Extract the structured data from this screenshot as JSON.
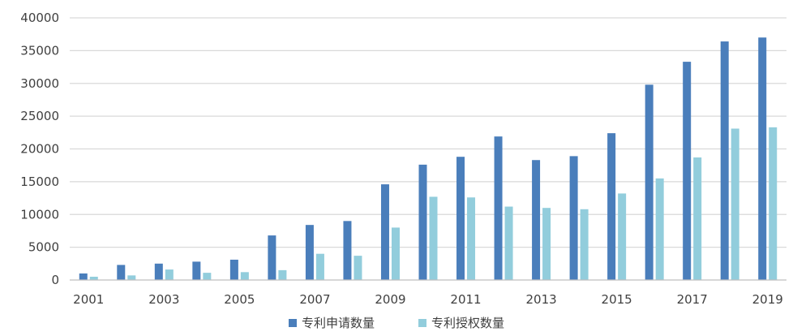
{
  "chart_data": {
    "type": "bar",
    "categories": [
      "2001",
      "2002",
      "2003",
      "2004",
      "2005",
      "2006",
      "2007",
      "2008",
      "2009",
      "2010",
      "2011",
      "2012",
      "2013",
      "2014",
      "2015",
      "2016",
      "2017",
      "2018",
      "2019"
    ],
    "x_tick_labels": [
      "2001",
      "2003",
      "2005",
      "2007",
      "2009",
      "2011",
      "2013",
      "2015",
      "2017",
      "2019"
    ],
    "series": [
      {
        "name": "专利申请数量",
        "color": "#4a7ebb",
        "values": [
          1000,
          2300,
          2500,
          2800,
          3100,
          6800,
          8400,
          9000,
          14600,
          17600,
          18800,
          21900,
          18300,
          18900,
          22400,
          29800,
          33300,
          36400,
          37000
        ]
      },
      {
        "name": "专利授权数量",
        "color": "#92cddc",
        "values": [
          500,
          700,
          1600,
          1100,
          1200,
          1500,
          4000,
          3700,
          8000,
          12700,
          12600,
          11200,
          11000,
          10800,
          13200,
          15500,
          18700,
          23100,
          23300
        ]
      }
    ],
    "y_ticks": [
      "0",
      "5000",
      "10000",
      "15000",
      "20000",
      "25000",
      "30000",
      "35000",
      "40000"
    ],
    "ylim": [
      0,
      40000
    ],
    "grid": true,
    "legend_position": "bottom"
  }
}
